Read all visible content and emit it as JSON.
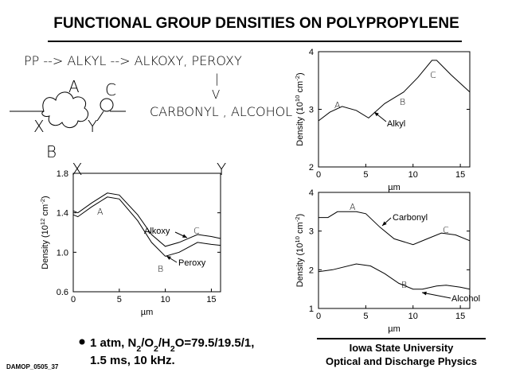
{
  "title": "FUNCTIONAL GROUP DENSITIES ON POLYPROPYLENE",
  "scheme": {
    "line1": "PP --> ALKYL --> ALKOXY, PEROXY",
    "bar": "|",
    "arrow": "V",
    "line2": "CARBONYL , ALCOHOL",
    "labels": [
      "A",
      "C",
      "X",
      "Y",
      "B",
      "X",
      "Y"
    ]
  },
  "bullet": {
    "line1": [
      "1 atm,  N",
      "2",
      "/O",
      "2",
      "/H",
      "2",
      "O=79.5/19.5/1,"
    ],
    "line2": "1.5 ms, 10 kHz."
  },
  "footer": {
    "university": "Iowa State University",
    "group": "Optical and Discharge Physics",
    "code": "DAMOP_0505_37"
  },
  "chart_data": [
    {
      "type": "line",
      "ylabel": [
        "Density (10",
        "12",
        " cm",
        "-2",
        ")"
      ],
      "xlabel": "µm",
      "xlim": [
        0,
        16
      ],
      "xticks": [
        0,
        5,
        10,
        15
      ],
      "ylim": [
        0.6,
        1.8
      ],
      "yticks": [
        0.6,
        {
          "value": 1,
          "label": "1.0"
        },
        1.4,
        1.8
      ],
      "annotations": [
        "A",
        "C",
        "B"
      ],
      "series": [
        {
          "name": "Alkoxy",
          "color": "#000000",
          "x": [
            0,
            0.5,
            2,
            3.7,
            5,
            7,
            8.5,
            10,
            11.5,
            13.5,
            15,
            16
          ],
          "values": [
            1.42,
            1.4,
            1.5,
            1.6,
            1.58,
            1.38,
            1.18,
            1.06,
            1.1,
            1.18,
            1.16,
            1.14
          ]
        },
        {
          "name": "Peroxy",
          "color": "#000000",
          "x": [
            0,
            0.5,
            2,
            3.7,
            5,
            7,
            8.5,
            10,
            11.5,
            13.5,
            15,
            16
          ],
          "values": [
            1.38,
            1.36,
            1.46,
            1.56,
            1.54,
            1.32,
            1.1,
            0.96,
            1.0,
            1.1,
            1.08,
            1.07
          ]
        }
      ]
    },
    {
      "type": "line",
      "ylabel": [
        "Density (10",
        "10",
        " cm",
        "-2",
        ")"
      ],
      "xlabel": "µm",
      "xlim": [
        0,
        16
      ],
      "xticks": [
        0,
        5,
        10,
        15
      ],
      "ylim": [
        2,
        4
      ],
      "yticks": [
        2,
        3,
        4
      ],
      "annotations": [
        "A",
        "B",
        "C"
      ],
      "series": [
        {
          "name": "Alkyl",
          "color": "#000000",
          "x": [
            0,
            1.2,
            2.5,
            4,
            5.3,
            7,
            9,
            10.5,
            12,
            12.5,
            14,
            16
          ],
          "values": [
            2.8,
            2.95,
            3.05,
            2.98,
            2.85,
            3.1,
            3.3,
            3.55,
            3.85,
            3.85,
            3.6,
            3.3
          ]
        }
      ]
    },
    {
      "type": "line",
      "ylabel": [
        "Density (10",
        "10",
        " cm",
        "-2",
        ")"
      ],
      "xlabel": "µm",
      "xlim": [
        0,
        16
      ],
      "xticks": [
        0,
        5,
        10,
        15
      ],
      "ylim": [
        1,
        4
      ],
      "yticks": [
        1,
        2,
        3,
        4
      ],
      "annotations": [
        "A",
        "C",
        "B"
      ],
      "series": [
        {
          "name": "Carbonyl",
          "color": "#000000",
          "x": [
            0,
            1,
            2,
            4,
            5,
            6.5,
            8,
            10,
            11.5,
            13,
            14.5,
            16
          ],
          "values": [
            3.35,
            3.35,
            3.5,
            3.5,
            3.45,
            3.1,
            2.8,
            2.65,
            2.8,
            2.95,
            2.9,
            2.75
          ]
        },
        {
          "name": "Alcohol",
          "color": "#000000",
          "x": [
            0,
            1.5,
            4,
            5.5,
            7,
            8.5,
            10,
            11,
            12.5,
            13.5,
            15,
            16
          ],
          "values": [
            1.95,
            2.0,
            2.15,
            2.1,
            1.9,
            1.65,
            1.5,
            1.5,
            1.58,
            1.6,
            1.55,
            1.5
          ]
        }
      ]
    }
  ]
}
